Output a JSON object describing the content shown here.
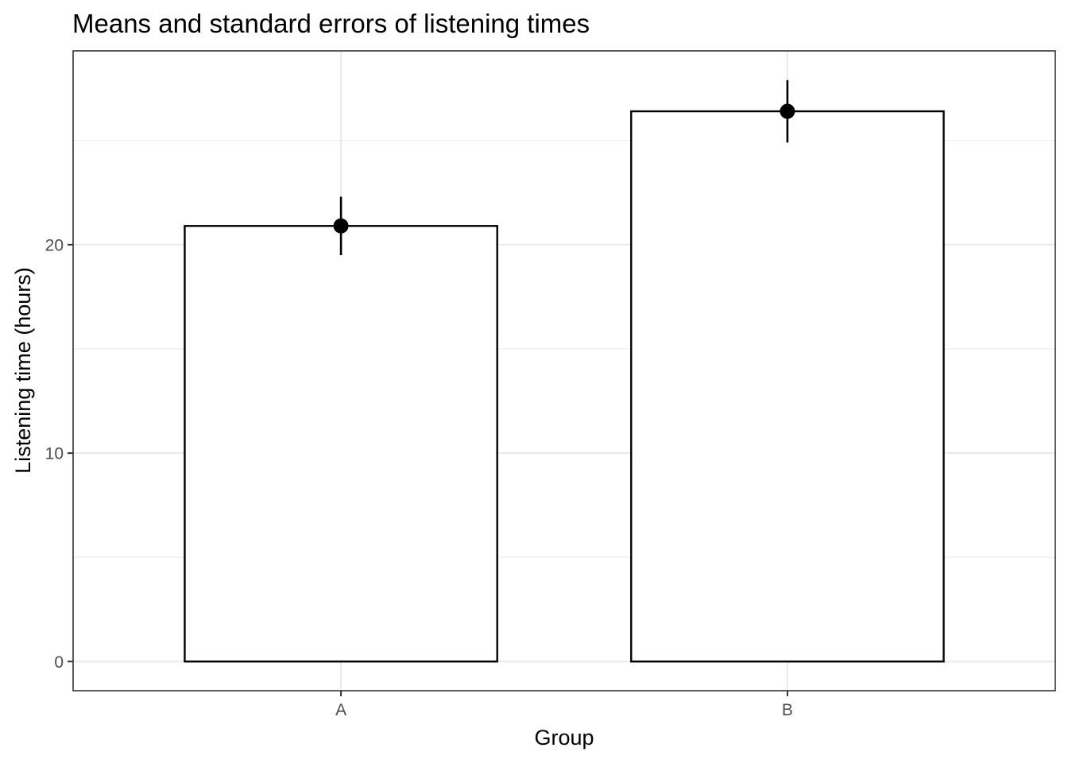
{
  "chart_data": {
    "type": "bar",
    "title": "Means and standard errors of listening times",
    "xlabel": "Group",
    "ylabel": "Listening time (hours)",
    "categories": [
      "A",
      "B"
    ],
    "values": [
      20.9,
      26.4
    ],
    "error_bars": [
      {
        "category": "A",
        "mean": 20.9,
        "lower": 19.5,
        "upper": 22.3
      },
      {
        "category": "B",
        "mean": 26.4,
        "lower": 24.9,
        "upper": 27.9
      }
    ],
    "y_ticks": [
      0,
      10,
      20
    ],
    "ylim": [
      -1.4,
      29.3
    ],
    "grid": true,
    "legend": "none",
    "colors": {
      "bar_fill": "#ffffff",
      "bar_stroke": "#000000",
      "point": "#000000",
      "grid": "#ebebeb",
      "panel_border": "#333333",
      "tick_label": "#4d4d4d"
    }
  }
}
